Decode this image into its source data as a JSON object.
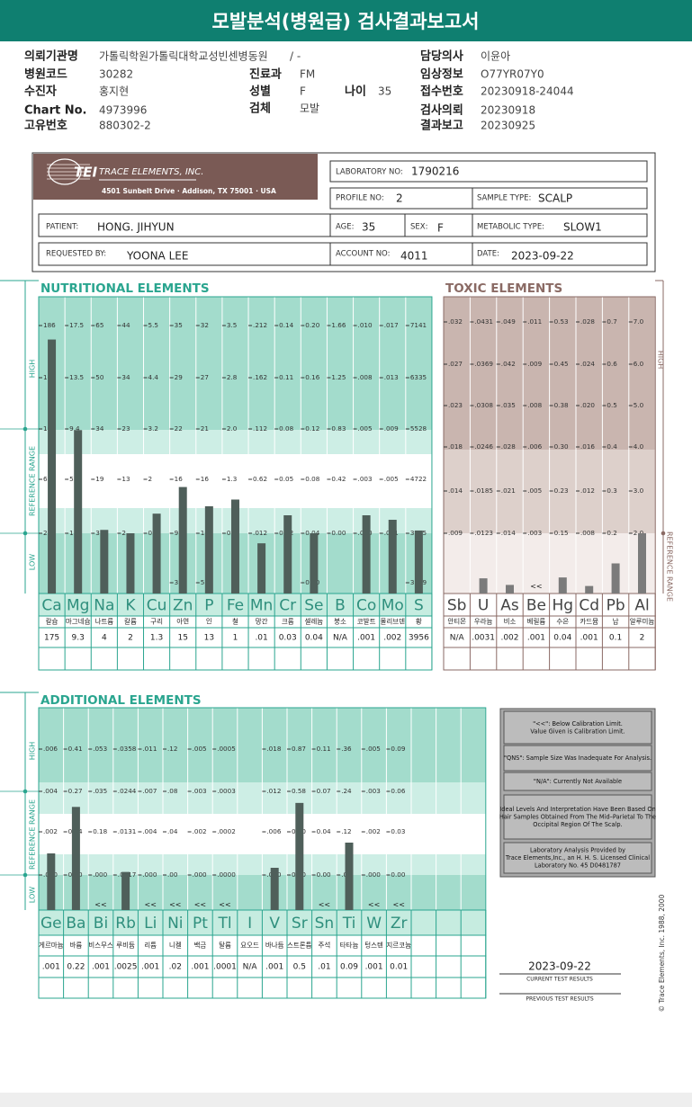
{
  "header": {
    "title": "모발분석(병원급) 검사결과보고서"
  },
  "info": {
    "fields": [
      {
        "label": "의뢰기관명",
        "value": "가톨릭학원가톨릭대학교성빈센병동원"
      },
      {
        "label": "담당의사",
        "value": "이윤아"
      },
      {
        "label": "병원코드",
        "value": "30282"
      },
      {
        "label": "진료과",
        "value": "FM"
      },
      {
        "label": "임상정보",
        "value": "O77YR07Y0"
      },
      {
        "label": "수진자",
        "value": "홍지현"
      },
      {
        "label": "성별",
        "value": "F"
      },
      {
        "label": "나이",
        "value": "35"
      },
      {
        "label": "접수번호",
        "value": "20230918-24044"
      },
      {
        "label": "Chart No.",
        "value": "4973996"
      },
      {
        "label": "검체",
        "value": "모발"
      },
      {
        "label": "검사의뢰",
        "value": "20230918"
      },
      {
        "label": "고유번호",
        "value": "880302-2"
      },
      {
        "label": "결과보고",
        "value": "20230925"
      }
    ],
    "institution_suffix": "/ -"
  },
  "lab": {
    "logo": "TEI",
    "company": "TRACE ELEMENTS, INC.",
    "address": "4501 Sunbelt Drive  ·  Addison, TX 75001  ·  USA",
    "fields": [
      {
        "label": "LABORATORY NO:",
        "value": "1790216"
      },
      {
        "label": "PROFILE NO:",
        "value": "2"
      },
      {
        "label": "SAMPLE TYPE:",
        "value": "SCALP"
      },
      {
        "label": "PATIENT:",
        "value": "HONG. JIHYUN"
      },
      {
        "label": "AGE:",
        "value": "35"
      },
      {
        "label": "SEX:",
        "value": "F"
      },
      {
        "label": "METABOLIC TYPE:",
        "value": "SLOW1"
      },
      {
        "label": "REQUESTED BY:",
        "value": "YOONA LEE"
      },
      {
        "label": "ACCOUNT NO:",
        "value": "4011"
      },
      {
        "label": "DATE:",
        "value": "2023-09-22"
      }
    ]
  },
  "nutritional": {
    "title": "NUTRITIONAL ELEMENTS",
    "side_labels": [
      "HIGH",
      "REFERENCE RANGE",
      "LOW"
    ],
    "elements": [
      {
        "symbol": "Ca",
        "name": "칼슘",
        "result": "175",
        "ticks": [
          "186",
          "145",
          "104",
          "63",
          "22"
        ]
      },
      {
        "symbol": "Mg",
        "name": "마그네슘",
        "result": "9.3",
        "ticks": [
          "17.5",
          "13.5",
          "9.4",
          "5",
          "1.3"
        ]
      },
      {
        "symbol": "Na",
        "name": "나트륨",
        "result": "4",
        "ticks": [
          "65",
          "50",
          "34",
          "19",
          "3"
        ]
      },
      {
        "symbol": "K",
        "name": "칼륨",
        "result": "2",
        "ticks": [
          "44",
          "34",
          "23",
          "13",
          "2"
        ]
      },
      {
        "symbol": "Cu",
        "name": "구리",
        "result": "1.3",
        "ticks": [
          "5.5",
          "4.4",
          "3.2",
          "2",
          "0.9"
        ]
      },
      {
        "symbol": "Zn",
        "name": "아연",
        "result": "15",
        "ticks": [
          "35",
          "29",
          "22",
          "16",
          "9"
        ],
        "bottom": "3"
      },
      {
        "symbol": "P",
        "name": "인",
        "result": "13",
        "ticks": [
          "32",
          "27",
          "21",
          "16",
          "10"
        ],
        "bottom": "5"
      },
      {
        "symbol": "Fe",
        "name": "철",
        "result": "1",
        "ticks": [
          "3.5",
          "2.8",
          "2.0",
          "1.3",
          "0.5"
        ]
      },
      {
        "symbol": "Mn",
        "name": "망간",
        "result": ".01",
        "ticks": [
          ".212",
          ".162",
          ".112",
          "0.62",
          ".012"
        ]
      },
      {
        "symbol": "Cr",
        "name": "크롬",
        "result": "0.03",
        "ticks": [
          "0.14",
          "0.11",
          "0.08",
          "0.05",
          "0.02"
        ]
      },
      {
        "symbol": "Se",
        "name": "셀레늄",
        "result": "0.04",
        "ticks": [
          "0.20",
          "0.16",
          "0.12",
          "0.08",
          "0.04"
        ],
        "bottom": "0.00"
      },
      {
        "symbol": "B",
        "name": "붕소",
        "result": "N/A",
        "ticks": [
          "1.66",
          "1.25",
          "0.83",
          "0.42",
          "0.00"
        ]
      },
      {
        "symbol": "Co",
        "name": "코발트",
        "result": ".001",
        "ticks": [
          ".010",
          ".008",
          ".005",
          ".003",
          ".000"
        ]
      },
      {
        "symbol": "Mo",
        "name": "몰리브덴",
        "result": ".002",
        "ticks": [
          ".017",
          ".013",
          ".009",
          ".005",
          ".001"
        ]
      },
      {
        "symbol": "S",
        "name": "황",
        "result": "3956",
        "ticks": [
          "7141",
          "6335",
          "5528",
          "4722",
          "3915"
        ],
        "bottom": "3109"
      }
    ]
  },
  "toxic": {
    "title": "TOXIC ELEMENTS",
    "side_labels": [
      "HIGH",
      "REFERENCE RANGE"
    ],
    "elements": [
      {
        "symbol": "Sb",
        "name": "안티몬",
        "result": "N/A",
        "ticks": [
          ".032",
          ".027",
          ".023",
          ".018",
          ".014",
          ".009"
        ]
      },
      {
        "symbol": "U",
        "name": "우라늄",
        "result": ".0031",
        "ticks": [
          ".0431",
          ".0369",
          ".0308",
          ".0246",
          ".0185",
          ".0123"
        ]
      },
      {
        "symbol": "As",
        "name": "비소",
        "result": ".002",
        "ticks": [
          ".049",
          ".042",
          ".035",
          ".028",
          ".021",
          ".014"
        ]
      },
      {
        "symbol": "Be",
        "name": "베릴륨",
        "result": ".001",
        "flag": "<<",
        "ticks": [
          ".011",
          ".009",
          ".008",
          ".006",
          ".005",
          ".003"
        ]
      },
      {
        "symbol": "Hg",
        "name": "수은",
        "result": "0.04",
        "ticks": [
          "0.53",
          "0.45",
          "0.38",
          "0.30",
          "0.23",
          "0.15"
        ]
      },
      {
        "symbol": "Cd",
        "name": "카드뮴",
        "result": ".001",
        "ticks": [
          ".028",
          ".024",
          ".020",
          ".016",
          ".012",
          ".008"
        ]
      },
      {
        "symbol": "Pb",
        "name": "납",
        "result": "0.1",
        "ticks": [
          "0.7",
          "0.6",
          "0.5",
          "0.4",
          "0.3",
          "0.2"
        ]
      },
      {
        "symbol": "Al",
        "name": "알루미늄",
        "result": "2",
        "ticks": [
          "7.0",
          "6.0",
          "5.0",
          "4.0",
          "3.0",
          "2.0"
        ]
      }
    ]
  },
  "additional": {
    "title": "ADDITIONAL ELEMENTS",
    "side_labels": [
      "HIGH",
      "REFERENCE RANGE",
      "LOW"
    ],
    "elements": [
      {
        "symbol": "Ge",
        "name": "게르마늄",
        "result": ".001",
        "ticks": [
          ".006",
          ".004",
          ".002",
          ".000"
        ]
      },
      {
        "symbol": "Ba",
        "name": "바륨",
        "result": "0.22",
        "ticks": [
          "0.41",
          "0.27",
          "0.14",
          "0.00"
        ]
      },
      {
        "symbol": "Bi",
        "name": "비스무스",
        "result": ".001",
        "flag": "<<",
        "ticks": [
          ".053",
          ".035",
          "0.18",
          ".000"
        ]
      },
      {
        "symbol": "Rb",
        "name": "루비듐",
        "result": ".0025",
        "ticks": [
          ".0358",
          ".0244",
          ".0131",
          ".0017"
        ]
      },
      {
        "symbol": "Li",
        "name": "리튬",
        "result": ".001",
        "flag": "<<",
        "ticks": [
          ".011",
          ".007",
          ".004",
          ".000"
        ]
      },
      {
        "symbol": "Ni",
        "name": "니켈",
        "result": ".02",
        "flag": "<<",
        "ticks": [
          ".12",
          ".08",
          ".04",
          ".00"
        ]
      },
      {
        "symbol": "Pt",
        "name": "백금",
        "result": ".001",
        "flag": "<<",
        "ticks": [
          ".005",
          ".003",
          ".002",
          ".000"
        ]
      },
      {
        "symbol": "Tl",
        "name": "탈륨",
        "result": ".0001",
        "flag": "<<",
        "ticks": [
          ".0005",
          ".0003",
          ".0002",
          ".0000"
        ]
      },
      {
        "symbol": "I",
        "name": "요오드",
        "result": "N/A",
        "ticks": []
      },
      {
        "symbol": "V",
        "name": "바나듐",
        "result": ".001",
        "ticks": [
          ".018",
          ".012",
          ".006",
          ".000"
        ]
      },
      {
        "symbol": "Sr",
        "name": "스트론튬",
        "result": "0.5",
        "ticks": [
          "0.87",
          "0.58",
          "0.30",
          "0.00"
        ]
      },
      {
        "symbol": "Sn",
        "name": "주석",
        "result": ".01",
        "flag": "<<",
        "ticks": [
          "0.11",
          "0.07",
          "0.04",
          "0.00"
        ]
      },
      {
        "symbol": "Ti",
        "name": "타타늄",
        "result": "0.09",
        "ticks": [
          ".36",
          ".24",
          ".12",
          ".00"
        ]
      },
      {
        "symbol": "W",
        "name": "텅스텐",
        "result": ".001",
        "flag": "<<",
        "ticks": [
          ".005",
          ".003",
          ".002",
          ".000"
        ]
      },
      {
        "symbol": "Zr",
        "name": "지르코늄",
        "result": "0.01",
        "flag": "<<",
        "ticks": [
          "0.09",
          "0.06",
          "0.03",
          "0.00"
        ]
      }
    ]
  },
  "notes": [
    [
      "\"<<\": Below Calibration Limit.",
      "Value Given is Calibration Limit."
    ],
    [
      "\"QNS\": Sample Size Was Inadequate For Analysis."
    ],
    [
      "\"N/A\": Currently Not Available"
    ],
    [
      "Ideal Levels And Interpretation Have Been Based On",
      "Hair Samples Obtained From The Mid–Parietal To The",
      "Occipital Region Of The Scalp."
    ],
    [
      "Laboratory Analysis Provided by",
      "Trace Elements,Inc., an H. H. S. Licensed Clinical",
      "Laboratory No. 45 D0481787"
    ]
  ],
  "footer": {
    "current_date": "2023-09-22",
    "current_label": "CURRENT TEST RESULTS",
    "previous_label": "PREVIOUS TEST RESULTS",
    "copyright": "© Trace Elements, Inc. 1988, 2000"
  }
}
